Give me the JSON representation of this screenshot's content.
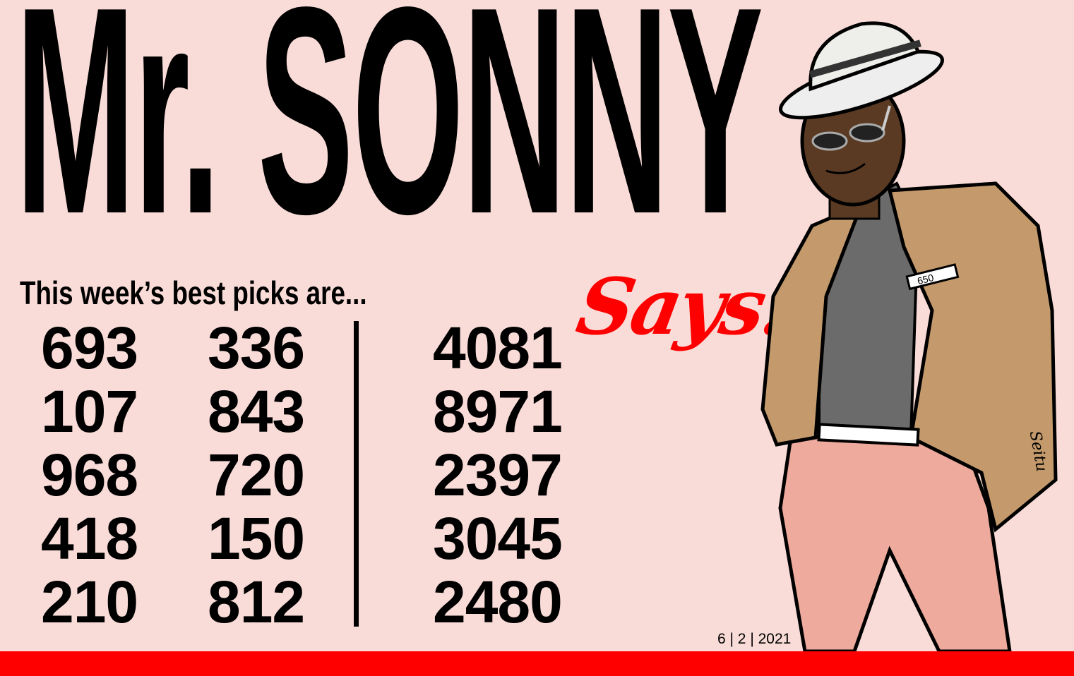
{
  "title": "Mr. SONNY",
  "title_script": "Says!",
  "subtitle": "This week’s best picks are...",
  "picks": {
    "three_digit_col1": [
      "693",
      "107",
      "968",
      "418",
      "210"
    ],
    "three_digit_col2": [
      "336",
      "843",
      "720",
      "150",
      "812"
    ],
    "four_digit": [
      "4081",
      "8971",
      "2397",
      "3045",
      "2480"
    ]
  },
  "pocket_card": "650",
  "signature": "Seitu",
  "date": "6 | 2 | 2021",
  "colors": {
    "background": "#f9dcd8",
    "accent": "#ff0000",
    "jacket": "#c49a6c",
    "pants": "#eeaa9c",
    "skin": "#5a3a22"
  }
}
